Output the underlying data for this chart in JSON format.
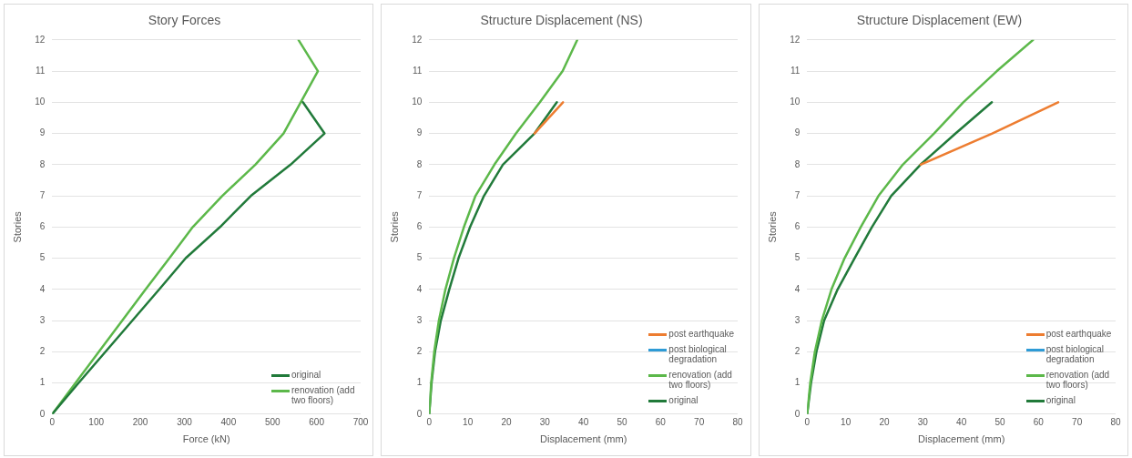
{
  "chart_data": [
    {
      "type": "line",
      "title": "Story Forces",
      "xlabel": "Force (kN)",
      "ylabel": "Stories",
      "xlim": [
        0,
        700
      ],
      "xticks": [
        0,
        100,
        200,
        300,
        400,
        500,
        600,
        700
      ],
      "ylim": [
        0,
        12
      ],
      "yticks": [
        0,
        1,
        2,
        3,
        4,
        5,
        6,
        7,
        8,
        9,
        10,
        11,
        12
      ],
      "grid": "y",
      "legend": "bottom right",
      "series": [
        {
          "name": "original",
          "color": "#217a3a",
          "x": [
            0,
            60,
            121,
            182,
            243,
            303,
            381,
            451,
            541,
            618,
            569
          ],
          "values": [
            0,
            1,
            2,
            3,
            4,
            5,
            6,
            7,
            8,
            9,
            10
          ]
        },
        {
          "name": "renovation (add two floors)",
          "color": "#5cb84a",
          "x": [
            0,
            53,
            106,
            159,
            212,
            266,
            319,
            386,
            461,
            525,
            564,
            603,
            559
          ],
          "values": [
            0,
            1,
            2,
            3,
            4,
            5,
            6,
            7,
            8,
            9,
            10,
            11,
            12
          ]
        }
      ]
    },
    {
      "type": "line",
      "title": "Structure Displacement (NS)",
      "xlabel": "Displacement (mm)",
      "ylabel": "Stories",
      "xlim": [
        0,
        80
      ],
      "xticks": [
        0,
        10,
        20,
        30,
        40,
        50,
        60,
        70,
        80
      ],
      "ylim": [
        0,
        12
      ],
      "yticks": [
        0,
        1,
        2,
        3,
        4,
        5,
        6,
        7,
        8,
        9,
        10,
        11,
        12
      ],
      "grid": "y",
      "legend": "bottom right",
      "series": [
        {
          "name": "post earthquake",
          "color": "#ed7d31",
          "x": [
            27.3,
            34.7
          ],
          "values": [
            9,
            10
          ]
        },
        {
          "name": "post biological degradation",
          "color": "#2e9bd6"
        },
        {
          "name": "renovation (add two floors)",
          "color": "#5cb84a",
          "x": [
            0,
            0.5,
            1.3,
            2.5,
            4.2,
            6.4,
            9.0,
            12.0,
            16.9,
            22.5,
            28.7,
            34.6,
            38.4
          ],
          "values": [
            0,
            1,
            2,
            3,
            4,
            5,
            6,
            7,
            8,
            9,
            10,
            11,
            12
          ]
        },
        {
          "name": "original",
          "color": "#217a3a",
          "x": [
            0,
            0.6,
            1.5,
            3.0,
            5.2,
            7.6,
            10.6,
            14.2,
            19.1,
            27.3,
            33.1
          ],
          "values": [
            0,
            1,
            2,
            3,
            4,
            5,
            6,
            7,
            8,
            9,
            10
          ]
        }
      ]
    },
    {
      "type": "line",
      "title": "Structure Displacement (EW)",
      "xlabel": "Displacement (mm)",
      "ylabel": "Stories",
      "xlim": [
        0,
        80
      ],
      "xticks": [
        0,
        10,
        20,
        30,
        40,
        50,
        60,
        70,
        80
      ],
      "ylim": [
        0,
        12
      ],
      "yticks": [
        0,
        1,
        2,
        3,
        4,
        5,
        6,
        7,
        8,
        9,
        10,
        11,
        12
      ],
      "grid": "y",
      "legend": "bottom right",
      "series": [
        {
          "name": "post earthquake",
          "color": "#ed7d31",
          "x": [
            29.4,
            48,
            65.1
          ],
          "values": [
            8,
            9,
            10
          ]
        },
        {
          "name": "post biological degradation",
          "color": "#2e9bd6"
        },
        {
          "name": "renovation (add two floors)",
          "color": "#5cb84a",
          "x": [
            0,
            0.8,
            2.0,
            3.8,
            6.3,
            9.7,
            13.9,
            18.5,
            24.8,
            32.9,
            40.5,
            49.2,
            58.6
          ],
          "values": [
            0,
            1,
            2,
            3,
            4,
            5,
            6,
            7,
            8,
            9,
            10,
            11,
            12
          ]
        },
        {
          "name": "original",
          "color": "#217a3a",
          "x": [
            0,
            1.0,
            2.4,
            4.4,
            7.9,
            12.3,
            16.8,
            21.8,
            29.4,
            38.5,
            47.9
          ],
          "values": [
            0,
            1,
            2,
            3,
            4,
            5,
            6,
            7,
            8,
            9,
            10
          ]
        }
      ]
    }
  ]
}
